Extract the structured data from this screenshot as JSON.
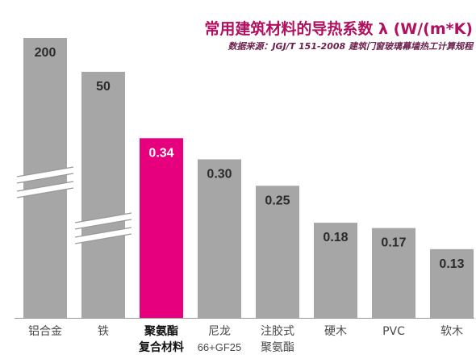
{
  "chart_data": {
    "type": "bar",
    "title": "常用建筑材料的导热系数 λ (W/(m*K)",
    "subtitle": "数据来源：JGJ/T 151-2008 建筑门窗玻璃幕墙热工计算规程",
    "categories": [
      [
        "铝合金"
      ],
      [
        "铁"
      ],
      [
        "聚氨酯",
        "复合材料"
      ],
      [
        "尼龙",
        "66+GF25"
      ],
      [
        "注胶式",
        "聚氨酯"
      ],
      [
        "硬木"
      ],
      [
        "PVC"
      ],
      [
        "软木"
      ]
    ],
    "values": [
      200,
      50,
      0.34,
      0.3,
      0.25,
      0.18,
      0.17,
      0.13
    ],
    "value_labels": [
      "200",
      "50",
      "0.34",
      "0.30",
      "0.25",
      "0.18",
      "0.17",
      "0.13"
    ],
    "broken_axis_bars": [
      0,
      1
    ],
    "highlight_index": 2,
    "colors": {
      "bar": "#a6a6a6",
      "highlight": "#e6007e",
      "title": "#b0105f",
      "subtitle": "#6b1f4a",
      "value_text": "#2b2b2b",
      "value_text_highlight": "#ffffff",
      "axis": "#999999",
      "category_text": "#4a4a4a"
    }
  }
}
